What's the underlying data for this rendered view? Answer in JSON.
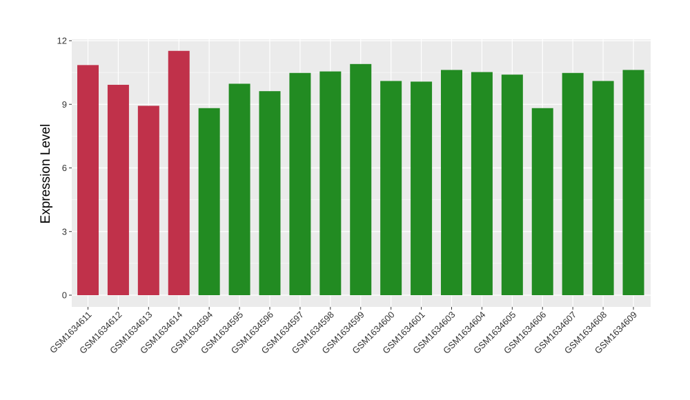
{
  "chart_data": {
    "type": "bar",
    "title": "",
    "xlabel": "",
    "ylabel": "Expression Level",
    "ylim": [
      0,
      12
    ],
    "yticks": [
      0,
      3,
      6,
      9,
      12
    ],
    "grid": true,
    "legend": "none",
    "categories": [
      "GSM1634611",
      "GSM1634612",
      "GSM1634613",
      "GSM1634614",
      "GSM1634594",
      "GSM1634595",
      "GSM1634596",
      "GSM1634597",
      "GSM1634598",
      "GSM1634599",
      "GSM1634600",
      "GSM1634601",
      "GSM1634603",
      "GSM1634604",
      "GSM1634605",
      "GSM1634606",
      "GSM1634607",
      "GSM1634608",
      "GSM1634609"
    ],
    "values": [
      10.85,
      9.92,
      8.93,
      11.52,
      8.82,
      9.97,
      9.62,
      10.48,
      10.55,
      10.9,
      10.1,
      10.07,
      10.62,
      10.52,
      10.4,
      8.82,
      10.48,
      10.1,
      10.62
    ],
    "bar_colors": [
      "#C0314A",
      "#C0314A",
      "#C0314A",
      "#C0314A",
      "#228B22",
      "#228B22",
      "#228B22",
      "#228B22",
      "#228B22",
      "#228B22",
      "#228B22",
      "#228B22",
      "#228B22",
      "#228B22",
      "#228B22",
      "#228B22",
      "#228B22",
      "#228B22",
      "#228B22"
    ],
    "panel_background": "#EBEBEB",
    "grid_color": "#FFFFFF"
  }
}
